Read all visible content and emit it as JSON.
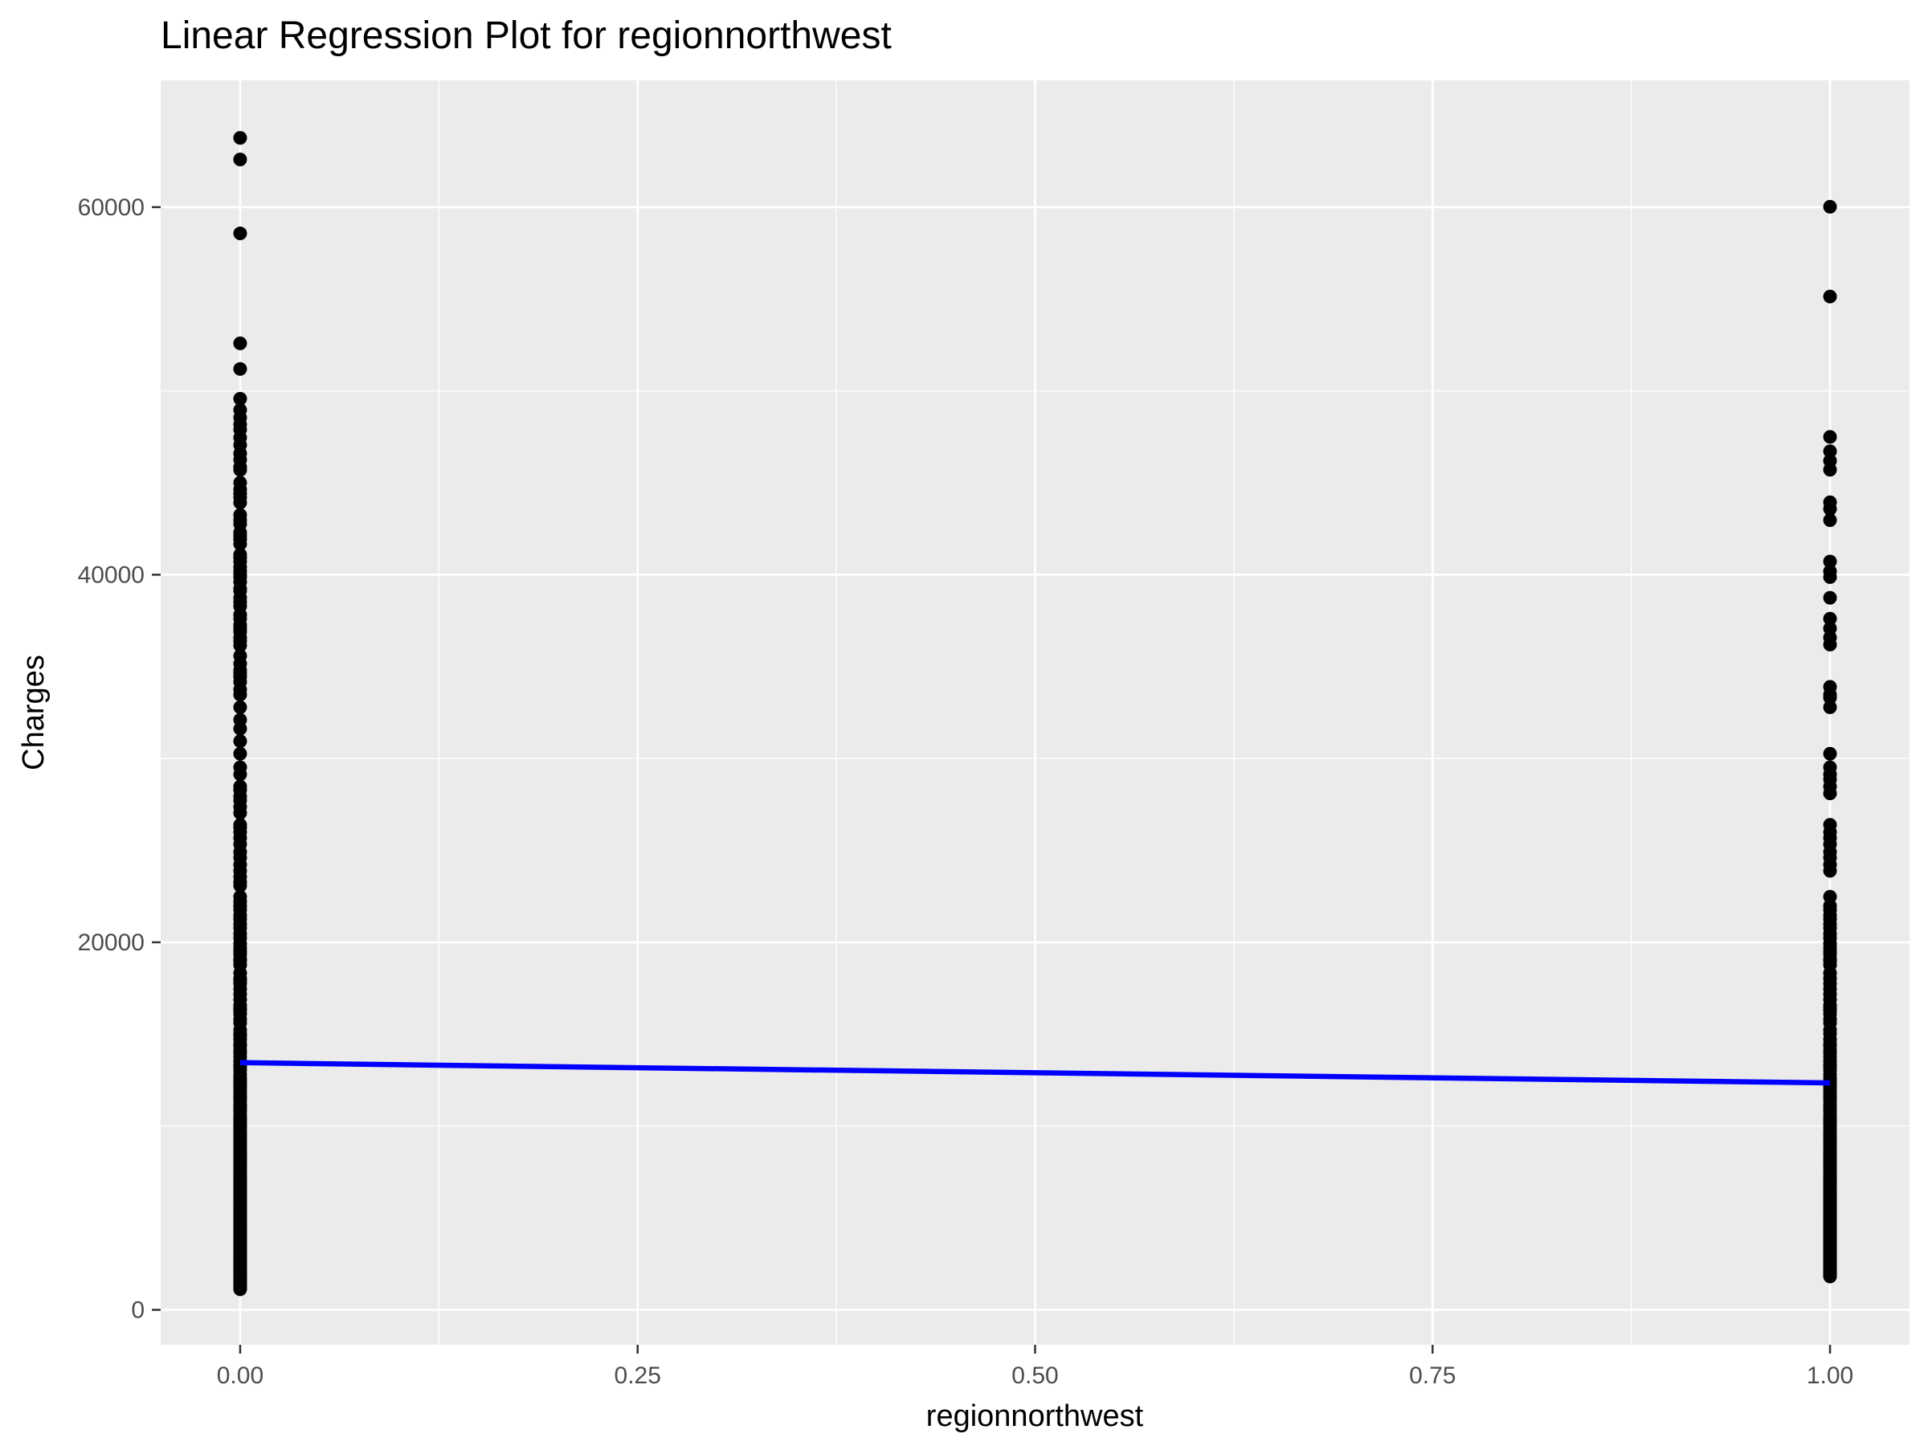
{
  "chart_data": {
    "type": "scatter",
    "title": "Linear Regression Plot for regionnorthwest",
    "xlabel": "regionnorthwest",
    "ylabel": "Charges",
    "xlim": [
      -0.05,
      1.05
    ],
    "ylim": [
      -1900,
      66900
    ],
    "x_ticks": [
      0,
      0.25,
      0.5,
      0.75,
      1
    ],
    "x_tick_labels": [
      "0.00",
      "0.25",
      "0.50",
      "0.75",
      "1.00"
    ],
    "y_ticks": [
      0,
      20000,
      40000,
      60000
    ],
    "y_tick_labels": [
      "0",
      "20000",
      "40000",
      "60000"
    ],
    "grid": true,
    "legend": "none",
    "colors": {
      "panel_background": "#ebebeb",
      "grid_major": "#ffffff",
      "points": "#000000",
      "regression_line": "#0000ff",
      "tick_label": "#4d4d4d"
    },
    "series": [
      {
        "x": 0,
        "values": [
          63770,
          62593,
          58571,
          52590,
          51195,
          49577,
          48970,
          48549,
          48173,
          47896,
          47462,
          47055,
          46599,
          46255,
          45863,
          45702,
          45008,
          44642,
          44423,
          44202,
          43921,
          43254,
          42983,
          42760,
          42303,
          42112,
          41919,
          41676,
          41097,
          40932,
          40720,
          40419,
          40182,
          39983,
          39871,
          39611,
          39241,
          39125,
          38746,
          38511,
          38282,
          37829,
          37607,
          37270,
          37079,
          36898,
          36580,
          36397,
          36149,
          35585,
          35160,
          34806,
          34617,
          34439,
          34166,
          33750,
          33475,
          32787,
          32108,
          31620,
          30942,
          30260,
          29523,
          29141,
          28476,
          28287,
          27941,
          27724,
          27375,
          27037,
          26392,
          26236,
          25992,
          25678,
          25333,
          24915,
          24603,
          24227,
          23887,
          23568,
          23288,
          23082,
          22478,
          22218,
          21984,
          21774,
          21472,
          21259,
          20984,
          20773,
          20462,
          20234,
          19933,
          19719,
          19515,
          19361,
          19107,
          18972,
          18767,
          18328,
          18033,
          17904,
          17748,
          17468,
          17178,
          16884,
          16577,
          16420,
          16297,
          16115,
          15820,
          15612,
          15230,
          15019,
          14901,
          14711,
          14474,
          14358,
          14133,
          13974,
          13770,
          13555,
          13352,
          13224,
          13047,
          12815,
          12629,
          12475,
          12347,
          12222,
          12105,
          11944,
          11830,
          11657,
          11538,
          11381,
          11165,
          11033,
          10977,
          10797,
          10601,
          10436,
          10325,
          10214,
          10072,
          9964,
          9800,
          9644,
          9541,
          9411,
          9288,
          9182,
          9048,
          8964,
          8827,
          8688,
          8547,
          8444,
          8342,
          8233,
          8124,
          8026,
          7935,
          7804,
          7682,
          7537,
          7419,
          7345,
          7228,
          7147,
          7045,
          6948,
          6849,
          6746,
          6664,
          6571,
          6474,
          6373,
          6287,
          6198,
          6118,
          6010,
          5910,
          5836,
          5757,
          5669,
          5594,
          5483,
          5385,
          5312,
          5245,
          5152,
          5073,
          4992,
          4906,
          4841,
          4762,
          4687,
          4618,
          4549,
          4464,
          4391,
          4320,
          4243,
          4185,
          4134,
          4058,
          3981,
          3917,
          3845,
          3771,
          3694,
          3625,
          3556,
          3490,
          3410,
          3353,
          3279,
          3201,
          3136,
          3062,
          2997,
          2922,
          2855,
          2789,
          2724,
          2660,
          2590,
          2526,
          2459,
          2394,
          2331,
          2261,
          2198,
          2134,
          2071,
          2007,
          1941,
          1880,
          1815,
          1758,
          1705,
          1635,
          1579,
          1516,
          1463,
          1392,
          1338,
          1256,
          1164,
          1121
        ]
      },
      {
        "x": 1,
        "values": [
          60021,
          55135,
          47497,
          46719,
          46200,
          45710,
          43943,
          43578,
          42969,
          40720,
          40182,
          39871,
          38746,
          37607,
          37079,
          36580,
          36197,
          33900,
          33475,
          33307,
          32787,
          30260,
          29523,
          29141,
          28868,
          28476,
          28101,
          26392,
          25992,
          25678,
          25333,
          24915,
          24603,
          24227,
          23887,
          22478,
          21984,
          21774,
          21472,
          21259,
          20984,
          20773,
          20462,
          20234,
          19933,
          19719,
          19515,
          19361,
          19107,
          18972,
          18767,
          18328,
          18033,
          17748,
          17468,
          17178,
          16884,
          16577,
          16420,
          16297,
          16115,
          15820,
          15612,
          15230,
          15019,
          14711,
          14474,
          14358,
          14133,
          13974,
          13770,
          13555,
          13352,
          13224,
          13047,
          12815,
          12629,
          12475,
          12347,
          12222,
          12105,
          11944,
          11830,
          11657,
          11538,
          11381,
          11165,
          11033,
          10977,
          10797,
          10601,
          10436,
          10325,
          10214,
          10072,
          9964,
          9800,
          9644,
          9541,
          9411,
          9288,
          9182,
          9048,
          8964,
          8827,
          8688,
          8547,
          8444,
          8342,
          8233,
          8124,
          8026,
          7935,
          7804,
          7682,
          7537,
          7419,
          7345,
          7228,
          7147,
          7045,
          6948,
          6849,
          6746,
          6664,
          6571,
          6474,
          6373,
          6287,
          6198,
          6118,
          6010,
          5910,
          5836,
          5757,
          5669,
          5594,
          5483,
          5385,
          5312,
          5245,
          5152,
          5073,
          4992,
          4906,
          4841,
          4762,
          4687,
          4618,
          4549,
          4464,
          4391,
          4320,
          4243,
          4185,
          4134,
          4058,
          3981,
          3917,
          3845,
          3771,
          3694,
          3625,
          3556,
          3490,
          3410,
          3353,
          3279,
          3201,
          3136,
          3062,
          2997,
          2922,
          2855,
          2789,
          2724,
          2660,
          2590,
          2526,
          2459,
          2394,
          2331,
          2261,
          2198,
          2134,
          2071,
          2007,
          1928,
          1880,
          1815
        ]
      }
    ],
    "regression_line": {
      "x": [
        0,
        1
      ],
      "y": [
        13451,
        12350
      ]
    }
  }
}
